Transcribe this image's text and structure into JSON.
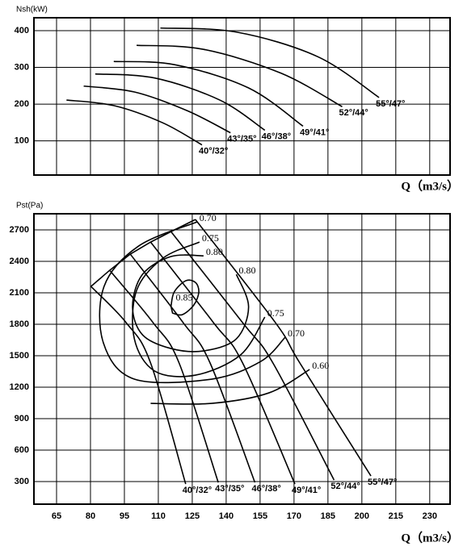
{
  "chart_data": [
    {
      "type": "line",
      "ylabel": "Nsh(kW)",
      "xlabel": "Q（m3/s）",
      "xlim": [
        55,
        239
      ],
      "ylim": [
        7,
        435
      ],
      "xticks": [
        65,
        80,
        95,
        110,
        125,
        140,
        155,
        170,
        185,
        200,
        215,
        230
      ],
      "yticks": [
        100,
        200,
        300,
        400
      ],
      "grid": true,
      "color": "#000000",
      "series": [
        {
          "name": "40°/32°",
          "x": [
            69.4,
            90.3,
            112.0,
            129.3
          ],
          "values": [
            211,
            196,
            149,
            89
          ]
        },
        {
          "name": "43°/35°",
          "x": [
            77.0,
            99.4,
            122.8,
            141.9
          ],
          "values": [
            249,
            233,
            182,
            122
          ]
        },
        {
          "name": "46°/38°",
          "x": [
            82.1,
            108.4,
            137.2,
            157.1
          ],
          "values": [
            282,
            271,
            211,
            129
          ]
        },
        {
          "name": "49°/41°",
          "x": [
            90.3,
            117.4,
            149.9,
            174.0
          ],
          "values": [
            316,
            307,
            244,
            140
          ]
        },
        {
          "name": "52°/44°",
          "x": [
            100.4,
            130.0,
            164.3,
            191.3
          ],
          "values": [
            360,
            349,
            284,
            193
          ]
        },
        {
          "name": "55°/47°",
          "x": [
            110.9,
            144.5,
            180.5,
            207.6
          ],
          "values": [
            407,
            396,
            329,
            218
          ]
        }
      ]
    },
    {
      "type": "line",
      "ylabel": "Pst(Pa)",
      "xlabel": "Q（m3/s）",
      "xlim": [
        55,
        239
      ],
      "ylim": [
        85,
        2854
      ],
      "xticks": [
        65,
        80,
        95,
        110,
        125,
        140,
        155,
        170,
        185,
        200,
        215,
        230
      ],
      "yticks": [
        300,
        600,
        900,
        1200,
        1500,
        1800,
        2100,
        2400,
        2700
      ],
      "grid": true,
      "color": "#000000",
      "series": [
        {
          "name": "40°/32°",
          "x": [
            80.2,
            95.8,
            106.6,
            122.1
          ],
          "values": [
            2161,
            1815,
            1430,
            277
          ]
        },
        {
          "name": "43°/35°",
          "x": [
            88.5,
            107.7,
            119.2,
            136.5
          ],
          "values": [
            2315,
            1815,
            1430,
            292
          ]
        },
        {
          "name": "46°/38°",
          "x": [
            97.6,
            121.0,
            132.9,
            152.7
          ],
          "values": [
            2469,
            1815,
            1430,
            292
          ]
        },
        {
          "name": "49°/41°",
          "x": [
            106.6,
            134.4,
            147.3,
            170.4
          ],
          "values": [
            2584,
            1815,
            1430,
            277
          ]
        },
        {
          "name": "52°/44°",
          "x": [
            115.6,
            147.3,
            160.7,
            187.7
          ],
          "values": [
            2684,
            1815,
            1430,
            315
          ]
        },
        {
          "name": "55°/47°",
          "x": [
            126.4,
            161.8,
            172.6,
            204.0
          ],
          "values": [
            2799,
            1815,
            1430,
            354
          ]
        }
      ],
      "contours": [
        {
          "labels": [
            "0.85"
          ],
          "closed": true,
          "x": [
            115.6,
            117.0,
            122.1,
            126.4,
            127.9,
            125.7,
            120.6,
            116.3
          ],
          "values": [
            1969,
            2107,
            2215,
            2199,
            2107,
            1984,
            1892,
            1907
          ]
        },
        {
          "labels": [
            "0.80",
            "0.80"
          ],
          "closed": false,
          "x": [
            130.0,
            115.6,
            103.0,
            98.6,
            103.0,
            115.6,
            130.0,
            144.5,
            149.9,
            144.5
          ],
          "values": [
            2453,
            2446,
            2276,
            1969,
            1700,
            1569,
            1546,
            1661,
            1969,
            2276
          ]
        },
        {
          "labels": [
            "0.75",
            "0.75"
          ],
          "closed": false,
          "x": [
            128.2,
            112.0,
            100.4,
            99.4,
            108.4,
            126.4,
            146.3,
            157.1
          ],
          "values": [
            2584,
            2430,
            2123,
            1661,
            1354,
            1315,
            1507,
            1869
          ]
        },
        {
          "labels": [
            "0.70",
            "0.70"
          ],
          "closed": false,
          "x": [
            127.1,
            101.2,
            86.0,
            85.7,
            99.4,
            133.6,
            155.3,
            166.1
          ],
          "values": [
            2776,
            2545,
            2161,
            1623,
            1277,
            1277,
            1446,
            1677
          ]
        },
        {
          "labels": [
            "0.60"
          ],
          "closed": false,
          "x": [
            106.6,
            133.6,
            158.9,
            176.9
          ],
          "values": [
            1046,
            1046,
            1146,
            1369
          ]
        }
      ]
    }
  ]
}
